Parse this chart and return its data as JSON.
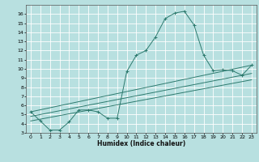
{
  "title": "",
  "xlabel": "Humidex (Indice chaleur)",
  "ylabel": "",
  "bg_color": "#b8e0e0",
  "grid_color": "#ffffff",
  "line_color": "#2d7a6e",
  "xlim": [
    -0.5,
    23.5
  ],
  "ylim": [
    3,
    17
  ],
  "xticks": [
    0,
    1,
    2,
    3,
    4,
    5,
    6,
    7,
    8,
    9,
    10,
    11,
    12,
    13,
    14,
    15,
    16,
    17,
    18,
    19,
    20,
    21,
    22,
    23
  ],
  "yticks": [
    3,
    4,
    5,
    6,
    7,
    8,
    9,
    10,
    11,
    12,
    13,
    14,
    15,
    16
  ],
  "main_series": {
    "x": [
      0,
      1,
      2,
      3,
      4,
      5,
      6,
      7,
      8,
      9,
      10,
      11,
      12,
      13,
      14,
      15,
      16,
      17,
      18,
      19,
      20,
      21,
      22,
      23
    ],
    "y": [
      5.3,
      4.3,
      3.3,
      3.3,
      4.2,
      5.5,
      5.5,
      5.3,
      4.6,
      4.6,
      9.7,
      11.5,
      12.0,
      13.5,
      15.5,
      16.1,
      16.3,
      14.8,
      11.5,
      9.8,
      9.9,
      9.8,
      9.3,
      10.4
    ]
  },
  "ref_lines": [
    {
      "x": [
        0,
        23
      ],
      "y": [
        5.3,
        10.4
      ]
    },
    {
      "x": [
        0,
        23
      ],
      "y": [
        4.8,
        9.5
      ]
    },
    {
      "x": [
        0,
        23
      ],
      "y": [
        4.3,
        8.8
      ]
    }
  ]
}
